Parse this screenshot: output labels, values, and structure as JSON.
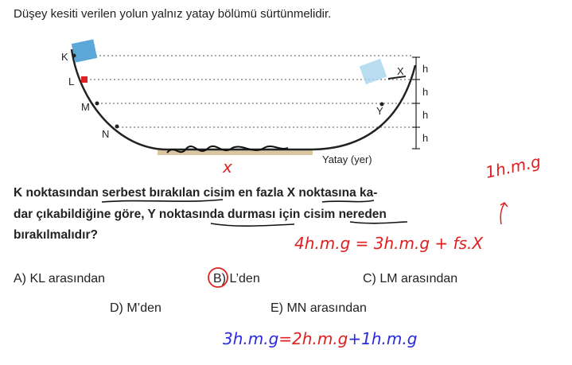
{
  "intro": "Düşey kesiti verilen yolun yalnız yatay bölümü sürtünmelidir.",
  "diagram": {
    "points": [
      "K",
      "L",
      "M",
      "N",
      "X",
      "Y"
    ],
    "heights": [
      "h",
      "h",
      "h",
      "h"
    ],
    "ground": "Yatay (yer)"
  },
  "question": {
    "lines": [
      "K noktasından serbest bırakılan cisim en fazla X noktasına ka-",
      "dar çıkabildiğine göre, Y noktasında durması için cisim nereden",
      "bırakılmalıdır?"
    ]
  },
  "options": [
    "A) KL arasından",
    "B) L’den",
    "C) LM arasından",
    "D) M’den",
    "E) MN arasından"
  ],
  "handwriting": {
    "ground_mark": "x",
    "side_note": "1h.m.g",
    "equation_1": "4h.m.g = 3h.m.g + fs.X",
    "equation_2": [
      "3h.m.g",
      "=2h.m.g",
      "+1h.m.g"
    ]
  }
}
